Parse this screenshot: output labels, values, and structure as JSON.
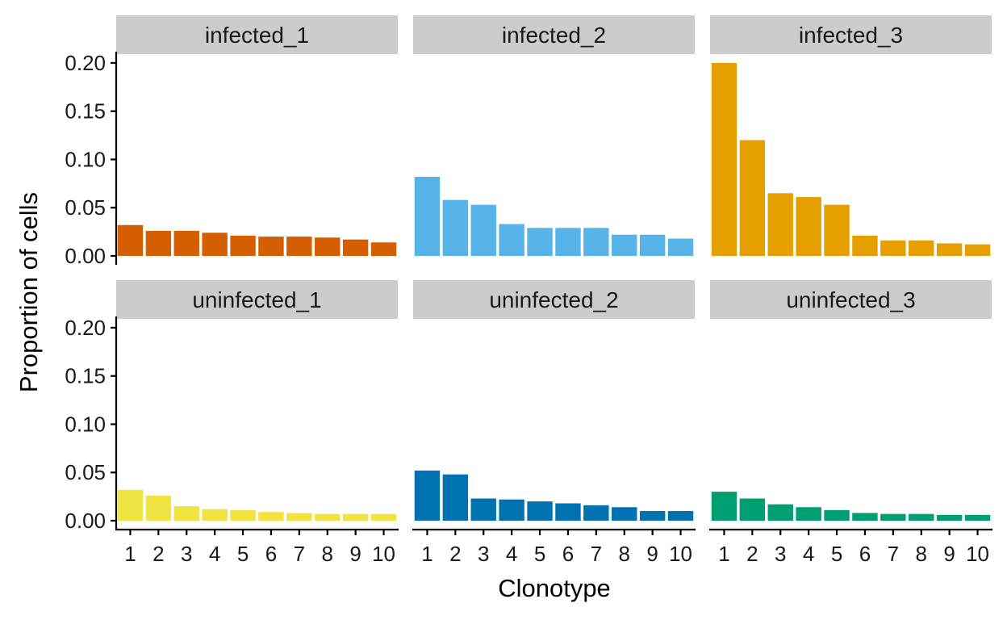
{
  "chart_data": {
    "type": "bar",
    "layout": "facet-grid-2x3",
    "xlabel": "Clonotype",
    "ylabel": "Proportion of cells",
    "categories": [
      "1",
      "2",
      "3",
      "4",
      "5",
      "6",
      "7",
      "8",
      "9",
      "10"
    ],
    "ylim": [
      0,
      0.21
    ],
    "yticks": [
      "0.00",
      "0.05",
      "0.10",
      "0.15",
      "0.20"
    ],
    "grid": false,
    "legend": "none",
    "panels": [
      {
        "name": "infected_1",
        "color": "#D55E00",
        "values": [
          0.032,
          0.026,
          0.026,
          0.024,
          0.021,
          0.02,
          0.02,
          0.019,
          0.017,
          0.014
        ]
      },
      {
        "name": "infected_2",
        "color": "#56B4E9",
        "values": [
          0.082,
          0.058,
          0.053,
          0.033,
          0.029,
          0.029,
          0.029,
          0.022,
          0.022,
          0.018
        ]
      },
      {
        "name": "infected_3",
        "color": "#E69F00",
        "values": [
          0.2,
          0.12,
          0.065,
          0.061,
          0.053,
          0.021,
          0.016,
          0.016,
          0.013,
          0.012
        ]
      },
      {
        "name": "uninfected_1",
        "color": "#F0E442",
        "values": [
          0.032,
          0.026,
          0.015,
          0.012,
          0.011,
          0.009,
          0.008,
          0.007,
          0.007,
          0.007
        ]
      },
      {
        "name": "uninfected_2",
        "color": "#0072B2",
        "values": [
          0.052,
          0.048,
          0.023,
          0.022,
          0.02,
          0.018,
          0.016,
          0.014,
          0.01,
          0.01
        ]
      },
      {
        "name": "uninfected_3",
        "color": "#009E73",
        "values": [
          0.03,
          0.023,
          0.017,
          0.014,
          0.011,
          0.008,
          0.007,
          0.007,
          0.006,
          0.006
        ]
      }
    ]
  }
}
